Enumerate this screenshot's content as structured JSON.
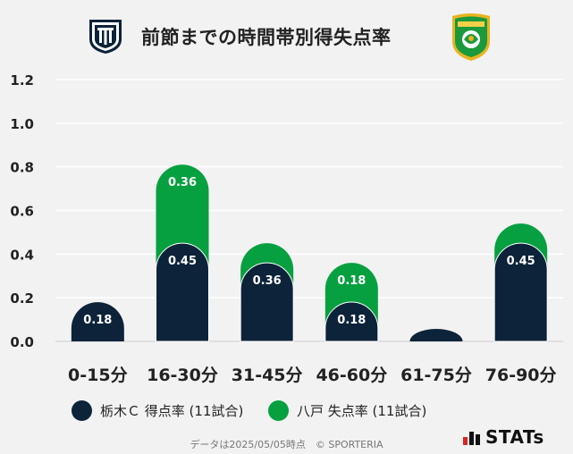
{
  "title": "前節までの時間帯別得失点率",
  "footer": "データは2025/05/05時点　© SPORTERIA",
  "brand": "STATs",
  "colors": {
    "home": "#0c2339",
    "away": "#07a040",
    "grid": "#ffffff",
    "background": "#f2f2f2",
    "axis_text": "#222222"
  },
  "chart_data": {
    "type": "bar",
    "stacked": true,
    "categories": [
      "0-15分",
      "16-30分",
      "31-45分",
      "46-60分",
      "61-75分",
      "76-90分"
    ],
    "series": [
      {
        "name": "栃木Ｃ 得点率 (11試合)",
        "values": [
          0.18,
          0.45,
          0.36,
          0.18,
          0.0,
          0.45
        ],
        "labels": [
          "0.18",
          "0.45",
          "0.36",
          "0.18",
          "",
          "0.45"
        ]
      },
      {
        "name": "八戸 失点率 (11試合)",
        "values": [
          0.0,
          0.36,
          0.09,
          0.18,
          0.0,
          0.09
        ],
        "labels": [
          "",
          "0.36",
          "",
          "0.18",
          "",
          ""
        ]
      }
    ],
    "ylim": [
      0,
      1.2
    ],
    "yticks": [
      "0.0",
      "0.2",
      "0.4",
      "0.6",
      "0.8",
      "1.0",
      "1.2"
    ],
    "grid": true,
    "legend_position": "bottom"
  }
}
